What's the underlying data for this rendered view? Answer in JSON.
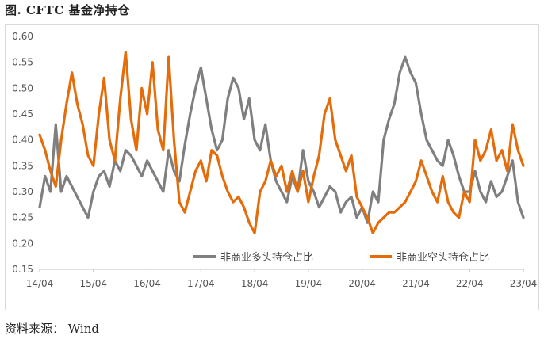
{
  "figure": {
    "title": "图. CFTC 基金净持仓",
    "source": "资料来源： Wind"
  },
  "chart_data": {
    "type": "line",
    "title": "图. CFTC 基金净持仓",
    "xlabel": "",
    "ylabel": "",
    "ylim": [
      0.15,
      0.6
    ],
    "yticks": [
      "0.15",
      "0.20",
      "0.25",
      "0.30",
      "0.35",
      "0.40",
      "0.45",
      "0.50",
      "0.55",
      "0.60"
    ],
    "xlim": [
      2014.0,
      2023.0
    ],
    "xtick_labels": [
      "14/04",
      "15/04",
      "16/04",
      "17/04",
      "18/04",
      "19/04",
      "20/04",
      "21/04",
      "22/04",
      "23/04"
    ],
    "grid": false,
    "legend_position": "bottom-right",
    "series": [
      {
        "name": "非商业多头持仓占比",
        "color": "#7f7f7f",
        "x": [
          2014.0,
          2014.1,
          2014.2,
          2014.3,
          2014.4,
          2014.5,
          2014.6,
          2014.7,
          2014.8,
          2014.9,
          2015.0,
          2015.1,
          2015.2,
          2015.3,
          2015.4,
          2015.5,
          2015.6,
          2015.7,
          2015.8,
          2015.9,
          2016.0,
          2016.1,
          2016.2,
          2016.3,
          2016.4,
          2016.5,
          2016.6,
          2016.7,
          2016.8,
          2016.9,
          2017.0,
          2017.1,
          2017.2,
          2017.3,
          2017.4,
          2017.5,
          2017.6,
          2017.7,
          2017.8,
          2017.9,
          2018.0,
          2018.1,
          2018.2,
          2018.3,
          2018.4,
          2018.5,
          2018.6,
          2018.7,
          2018.8,
          2018.9,
          2019.0,
          2019.1,
          2019.2,
          2019.3,
          2019.4,
          2019.5,
          2019.6,
          2019.7,
          2019.8,
          2019.9,
          2020.0,
          2020.1,
          2020.2,
          2020.3,
          2020.4,
          2020.5,
          2020.6,
          2020.7,
          2020.8,
          2020.9,
          2021.0,
          2021.1,
          2021.2,
          2021.3,
          2021.4,
          2021.5,
          2021.6,
          2021.7,
          2021.8,
          2021.9,
          2022.0,
          2022.1,
          2022.2,
          2022.3,
          2022.4,
          2022.5,
          2022.6,
          2022.7,
          2022.8,
          2022.9,
          2023.0
        ],
        "values": [
          0.27,
          0.33,
          0.3,
          0.43,
          0.3,
          0.33,
          0.31,
          0.29,
          0.27,
          0.25,
          0.3,
          0.33,
          0.34,
          0.31,
          0.36,
          0.34,
          0.38,
          0.37,
          0.35,
          0.33,
          0.36,
          0.34,
          0.32,
          0.3,
          0.38,
          0.34,
          0.32,
          0.39,
          0.45,
          0.5,
          0.54,
          0.48,
          0.42,
          0.38,
          0.4,
          0.48,
          0.52,
          0.5,
          0.44,
          0.48,
          0.4,
          0.38,
          0.43,
          0.36,
          0.32,
          0.3,
          0.28,
          0.33,
          0.3,
          0.38,
          0.32,
          0.3,
          0.27,
          0.29,
          0.31,
          0.3,
          0.26,
          0.28,
          0.29,
          0.25,
          0.27,
          0.24,
          0.3,
          0.28,
          0.4,
          0.44,
          0.47,
          0.53,
          0.56,
          0.53,
          0.51,
          0.45,
          0.4,
          0.38,
          0.36,
          0.35,
          0.4,
          0.37,
          0.33,
          0.3,
          0.3,
          0.34,
          0.3,
          0.28,
          0.32,
          0.29,
          0.3,
          0.33,
          0.36,
          0.28,
          0.25
        ]
      },
      {
        "name": "非商业空头持仓占比",
        "color": "#e46c0a",
        "x": [
          2014.0,
          2014.1,
          2014.2,
          2014.3,
          2014.4,
          2014.5,
          2014.6,
          2014.7,
          2014.8,
          2014.9,
          2015.0,
          2015.1,
          2015.2,
          2015.3,
          2015.4,
          2015.5,
          2015.6,
          2015.7,
          2015.8,
          2015.9,
          2016.0,
          2016.1,
          2016.2,
          2016.3,
          2016.4,
          2016.5,
          2016.6,
          2016.7,
          2016.8,
          2016.9,
          2017.0,
          2017.1,
          2017.2,
          2017.3,
          2017.4,
          2017.5,
          2017.6,
          2017.7,
          2017.8,
          2017.9,
          2018.0,
          2018.1,
          2018.2,
          2018.3,
          2018.4,
          2018.5,
          2018.6,
          2018.7,
          2018.8,
          2018.9,
          2019.0,
          2019.1,
          2019.2,
          2019.3,
          2019.4,
          2019.5,
          2019.6,
          2019.7,
          2019.8,
          2019.9,
          2020.0,
          2020.1,
          2020.2,
          2020.3,
          2020.4,
          2020.5,
          2020.6,
          2020.7,
          2020.8,
          2020.9,
          2021.0,
          2021.1,
          2021.2,
          2021.3,
          2021.4,
          2021.5,
          2021.6,
          2021.7,
          2021.8,
          2021.9,
          2022.0,
          2022.1,
          2022.2,
          2022.3,
          2022.4,
          2022.5,
          2022.6,
          2022.7,
          2022.8,
          2022.9,
          2023.0
        ],
        "values": [
          0.41,
          0.38,
          0.34,
          0.31,
          0.4,
          0.47,
          0.53,
          0.47,
          0.43,
          0.37,
          0.35,
          0.45,
          0.52,
          0.4,
          0.36,
          0.48,
          0.57,
          0.44,
          0.38,
          0.5,
          0.45,
          0.55,
          0.42,
          0.38,
          0.56,
          0.4,
          0.28,
          0.26,
          0.3,
          0.34,
          0.36,
          0.32,
          0.38,
          0.37,
          0.33,
          0.3,
          0.28,
          0.29,
          0.27,
          0.24,
          0.22,
          0.3,
          0.32,
          0.36,
          0.33,
          0.35,
          0.3,
          0.34,
          0.3,
          0.34,
          0.28,
          0.33,
          0.37,
          0.45,
          0.48,
          0.4,
          0.37,
          0.34,
          0.37,
          0.29,
          0.27,
          0.25,
          0.22,
          0.24,
          0.25,
          0.26,
          0.26,
          0.27,
          0.28,
          0.3,
          0.32,
          0.36,
          0.33,
          0.3,
          0.28,
          0.33,
          0.28,
          0.26,
          0.25,
          0.3,
          0.28,
          0.4,
          0.36,
          0.38,
          0.42,
          0.36,
          0.38,
          0.34,
          0.43,
          0.38,
          0.35
        ]
      }
    ]
  }
}
